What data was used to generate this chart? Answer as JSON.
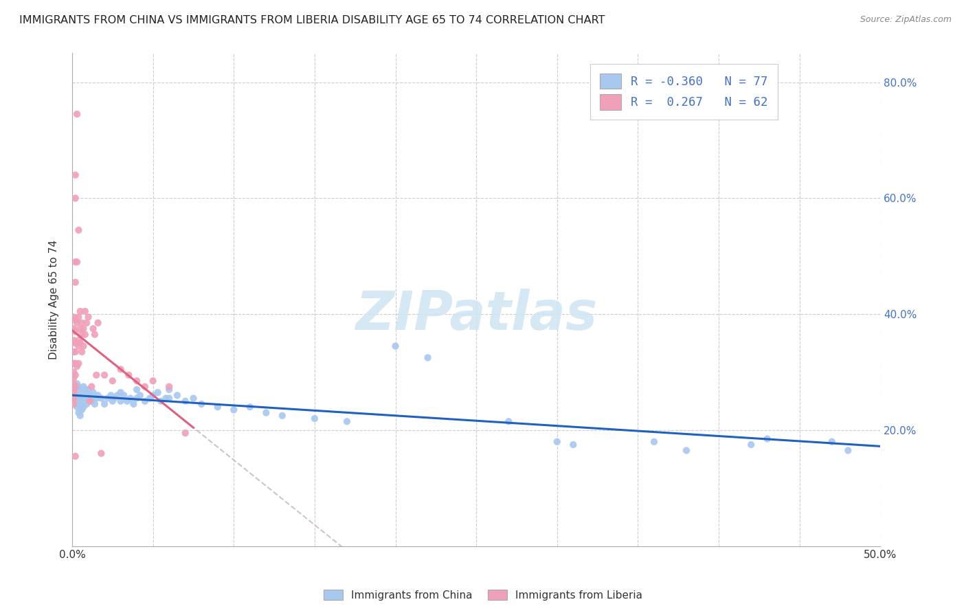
{
  "title": "IMMIGRANTS FROM CHINA VS IMMIGRANTS FROM LIBERIA DISABILITY AGE 65 TO 74 CORRELATION CHART",
  "source": "Source: ZipAtlas.com",
  "ylabel": "Disability Age 65 to 74",
  "xlim": [
    0.0,
    0.5
  ],
  "ylim": [
    0.0,
    0.85
  ],
  "xticks": [
    0.0,
    0.05,
    0.1,
    0.15,
    0.2,
    0.25,
    0.3,
    0.35,
    0.4,
    0.45,
    0.5
  ],
  "xticklabels": [
    "0.0%",
    "",
    "",
    "",
    "",
    "",
    "",
    "",
    "",
    "",
    "50.0%"
  ],
  "yticks": [
    0.0,
    0.2,
    0.4,
    0.6,
    0.8
  ],
  "yticklabels": [
    "",
    "20.0%",
    "40.0%",
    "60.0%",
    "80.0%"
  ],
  "china_color": "#a8c8f0",
  "liberia_color": "#f0a0b8",
  "china_R": -0.36,
  "china_N": 77,
  "liberia_R": 0.267,
  "liberia_N": 62,
  "china_line_color": "#2060c0",
  "liberia_line_color": "#e06080",
  "dashed_line_color": "#c8b8c0",
  "watermark_color": "#d0e4f4",
  "watermark": "ZIPatlas",
  "china_scatter": [
    [
      0.002,
      0.265
    ],
    [
      0.002,
      0.25
    ],
    [
      0.003,
      0.28
    ],
    [
      0.003,
      0.26
    ],
    [
      0.003,
      0.24
    ],
    [
      0.004,
      0.275
    ],
    [
      0.004,
      0.26
    ],
    [
      0.004,
      0.245
    ],
    [
      0.004,
      0.23
    ],
    [
      0.005,
      0.27
    ],
    [
      0.005,
      0.255
    ],
    [
      0.005,
      0.24
    ],
    [
      0.005,
      0.225
    ],
    [
      0.006,
      0.265
    ],
    [
      0.006,
      0.25
    ],
    [
      0.006,
      0.235
    ],
    [
      0.007,
      0.275
    ],
    [
      0.007,
      0.255
    ],
    [
      0.007,
      0.24
    ],
    [
      0.008,
      0.27
    ],
    [
      0.008,
      0.25
    ],
    [
      0.009,
      0.265
    ],
    [
      0.009,
      0.245
    ],
    [
      0.01,
      0.27
    ],
    [
      0.01,
      0.255
    ],
    [
      0.011,
      0.26
    ],
    [
      0.012,
      0.25
    ],
    [
      0.013,
      0.265
    ],
    [
      0.014,
      0.245
    ],
    [
      0.015,
      0.255
    ],
    [
      0.016,
      0.26
    ],
    [
      0.018,
      0.255
    ],
    [
      0.02,
      0.245
    ],
    [
      0.022,
      0.255
    ],
    [
      0.024,
      0.26
    ],
    [
      0.025,
      0.25
    ],
    [
      0.026,
      0.255
    ],
    [
      0.028,
      0.26
    ],
    [
      0.03,
      0.265
    ],
    [
      0.03,
      0.25
    ],
    [
      0.032,
      0.26
    ],
    [
      0.034,
      0.25
    ],
    [
      0.036,
      0.255
    ],
    [
      0.038,
      0.245
    ],
    [
      0.04,
      0.27
    ],
    [
      0.04,
      0.255
    ],
    [
      0.042,
      0.26
    ],
    [
      0.045,
      0.25
    ],
    [
      0.048,
      0.255
    ],
    [
      0.05,
      0.26
    ],
    [
      0.053,
      0.265
    ],
    [
      0.055,
      0.25
    ],
    [
      0.058,
      0.255
    ],
    [
      0.06,
      0.27
    ],
    [
      0.06,
      0.255
    ],
    [
      0.065,
      0.26
    ],
    [
      0.07,
      0.25
    ],
    [
      0.075,
      0.255
    ],
    [
      0.08,
      0.245
    ],
    [
      0.09,
      0.24
    ],
    [
      0.1,
      0.235
    ],
    [
      0.11,
      0.24
    ],
    [
      0.12,
      0.23
    ],
    [
      0.13,
      0.225
    ],
    [
      0.15,
      0.22
    ],
    [
      0.17,
      0.215
    ],
    [
      0.2,
      0.345
    ],
    [
      0.22,
      0.325
    ],
    [
      0.27,
      0.215
    ],
    [
      0.3,
      0.18
    ],
    [
      0.31,
      0.175
    ],
    [
      0.36,
      0.18
    ],
    [
      0.38,
      0.165
    ],
    [
      0.42,
      0.175
    ],
    [
      0.43,
      0.185
    ],
    [
      0.47,
      0.18
    ],
    [
      0.48,
      0.165
    ]
  ],
  "liberia_scatter": [
    [
      0.001,
      0.395
    ],
    [
      0.001,
      0.375
    ],
    [
      0.001,
      0.355
    ],
    [
      0.001,
      0.335
    ],
    [
      0.001,
      0.315
    ],
    [
      0.001,
      0.3
    ],
    [
      0.001,
      0.29
    ],
    [
      0.001,
      0.28
    ],
    [
      0.001,
      0.27
    ],
    [
      0.001,
      0.265
    ],
    [
      0.001,
      0.255
    ],
    [
      0.001,
      0.245
    ],
    [
      0.002,
      0.64
    ],
    [
      0.002,
      0.6
    ],
    [
      0.002,
      0.49
    ],
    [
      0.002,
      0.455
    ],
    [
      0.002,
      0.39
    ],
    [
      0.002,
      0.37
    ],
    [
      0.002,
      0.35
    ],
    [
      0.002,
      0.335
    ],
    [
      0.002,
      0.315
    ],
    [
      0.002,
      0.295
    ],
    [
      0.002,
      0.275
    ],
    [
      0.002,
      0.155
    ],
    [
      0.003,
      0.745
    ],
    [
      0.003,
      0.49
    ],
    [
      0.003,
      0.385
    ],
    [
      0.003,
      0.35
    ],
    [
      0.003,
      0.31
    ],
    [
      0.004,
      0.545
    ],
    [
      0.004,
      0.395
    ],
    [
      0.004,
      0.355
    ],
    [
      0.004,
      0.345
    ],
    [
      0.004,
      0.315
    ],
    [
      0.005,
      0.405
    ],
    [
      0.005,
      0.375
    ],
    [
      0.005,
      0.35
    ],
    [
      0.006,
      0.385
    ],
    [
      0.006,
      0.365
    ],
    [
      0.006,
      0.335
    ],
    [
      0.007,
      0.375
    ],
    [
      0.007,
      0.345
    ],
    [
      0.008,
      0.405
    ],
    [
      0.008,
      0.365
    ],
    [
      0.009,
      0.385
    ],
    [
      0.01,
      0.395
    ],
    [
      0.011,
      0.25
    ],
    [
      0.012,
      0.275
    ],
    [
      0.013,
      0.375
    ],
    [
      0.014,
      0.365
    ],
    [
      0.015,
      0.295
    ],
    [
      0.016,
      0.385
    ],
    [
      0.018,
      0.16
    ],
    [
      0.02,
      0.295
    ],
    [
      0.025,
      0.285
    ],
    [
      0.03,
      0.305
    ],
    [
      0.035,
      0.295
    ],
    [
      0.04,
      0.285
    ],
    [
      0.045,
      0.275
    ],
    [
      0.05,
      0.285
    ],
    [
      0.06,
      0.275
    ],
    [
      0.07,
      0.195
    ]
  ]
}
